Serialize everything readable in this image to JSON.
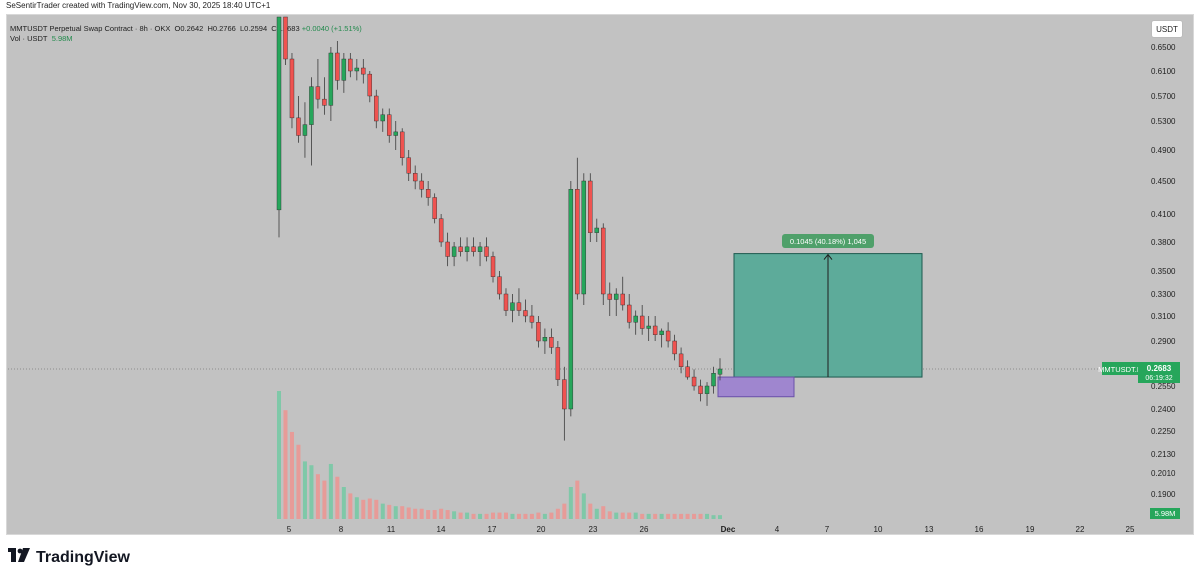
{
  "attribution": "SeSentirTrader created with TradingView.com, Nov 30, 2025 18:40 UTC+1",
  "header": {
    "symbol": "MMTUSDT Perpetual Swap Contract · 8h · OKX",
    "open": "O0.2642",
    "high": "H0.2766",
    "low": "L0.2594",
    "close": "C0.2683",
    "change": "+0.0040 (+1.51%)",
    "vol_label": "Vol · USDT",
    "vol_value": "5.98M"
  },
  "currency_button": "USDT",
  "price_label": {
    "symbol": "MMTUSDT.P",
    "price": "0.2683",
    "countdown": "06:19:32"
  },
  "volume_label": "5.98M",
  "measure_label": "0.1045 (40.18%) 1,045",
  "footer": {
    "logo_text": "TradingView"
  },
  "colors": {
    "up": "#26a65b",
    "down": "#ef5350",
    "target_zone": "#5dab9a",
    "entry_zone": "#9f86cf",
    "background": "#c2c2c2"
  },
  "chart_data": {
    "type": "candlestick",
    "timeframe": "8h",
    "y_ticks": [
      "0.6500",
      "0.6100",
      "0.5700",
      "0.5300",
      "0.4900",
      "0.4500",
      "0.4100",
      "0.3800",
      "0.3500",
      "0.3300",
      "0.3100",
      "0.2900",
      "0.2550",
      "0.2400",
      "0.2250",
      "0.2130",
      "0.2010",
      "0.1900"
    ],
    "x_ticks": [
      "5",
      "8",
      "11",
      "14",
      "17",
      "20",
      "23",
      "26",
      "Dec",
      "4",
      "7",
      "10",
      "13",
      "16",
      "19",
      "22",
      "25"
    ],
    "y_range": [
      0.185,
      0.69
    ],
    "last_price": 0.2683,
    "last_volume": "5.98M",
    "candles": [
      {
        "o": 0.415,
        "h": 0.7,
        "l": 0.385,
        "c": 0.7,
        "v": 1.0
      },
      {
        "o": 0.7,
        "h": 0.7,
        "l": 0.62,
        "c": 0.63,
        "v": 0.85
      },
      {
        "o": 0.63,
        "h": 0.64,
        "l": 0.52,
        "c": 0.535,
        "v": 0.68
      },
      {
        "o": 0.535,
        "h": 0.57,
        "l": 0.5,
        "c": 0.51,
        "v": 0.58
      },
      {
        "o": 0.51,
        "h": 0.56,
        "l": 0.48,
        "c": 0.525,
        "v": 0.45
      },
      {
        "o": 0.525,
        "h": 0.6,
        "l": 0.47,
        "c": 0.585,
        "v": 0.42
      },
      {
        "o": 0.585,
        "h": 0.63,
        "l": 0.55,
        "c": 0.565,
        "v": 0.35
      },
      {
        "o": 0.565,
        "h": 0.6,
        "l": 0.54,
        "c": 0.555,
        "v": 0.3
      },
      {
        "o": 0.555,
        "h": 0.65,
        "l": 0.53,
        "c": 0.64,
        "v": 0.43
      },
      {
        "o": 0.64,
        "h": 0.66,
        "l": 0.58,
        "c": 0.595,
        "v": 0.33
      },
      {
        "o": 0.595,
        "h": 0.64,
        "l": 0.575,
        "c": 0.63,
        "v": 0.25
      },
      {
        "o": 0.63,
        "h": 0.64,
        "l": 0.6,
        "c": 0.61,
        "v": 0.2
      },
      {
        "o": 0.61,
        "h": 0.63,
        "l": 0.595,
        "c": 0.615,
        "v": 0.17
      },
      {
        "o": 0.615,
        "h": 0.63,
        "l": 0.59,
        "c": 0.605,
        "v": 0.15
      },
      {
        "o": 0.605,
        "h": 0.61,
        "l": 0.56,
        "c": 0.57,
        "v": 0.16
      },
      {
        "o": 0.57,
        "h": 0.58,
        "l": 0.52,
        "c": 0.53,
        "v": 0.15
      },
      {
        "o": 0.53,
        "h": 0.55,
        "l": 0.515,
        "c": 0.54,
        "v": 0.12
      },
      {
        "o": 0.54,
        "h": 0.55,
        "l": 0.5,
        "c": 0.51,
        "v": 0.11
      },
      {
        "o": 0.51,
        "h": 0.53,
        "l": 0.49,
        "c": 0.515,
        "v": 0.1
      },
      {
        "o": 0.515,
        "h": 0.52,
        "l": 0.47,
        "c": 0.48,
        "v": 0.1
      },
      {
        "o": 0.48,
        "h": 0.49,
        "l": 0.45,
        "c": 0.46,
        "v": 0.09
      },
      {
        "o": 0.46,
        "h": 0.47,
        "l": 0.44,
        "c": 0.45,
        "v": 0.08
      },
      {
        "o": 0.45,
        "h": 0.46,
        "l": 0.43,
        "c": 0.44,
        "v": 0.08
      },
      {
        "o": 0.44,
        "h": 0.45,
        "l": 0.42,
        "c": 0.43,
        "v": 0.07
      },
      {
        "o": 0.43,
        "h": 0.435,
        "l": 0.4,
        "c": 0.405,
        "v": 0.07
      },
      {
        "o": 0.405,
        "h": 0.41,
        "l": 0.375,
        "c": 0.38,
        "v": 0.08
      },
      {
        "o": 0.38,
        "h": 0.39,
        "l": 0.355,
        "c": 0.365,
        "v": 0.07
      },
      {
        "o": 0.365,
        "h": 0.38,
        "l": 0.355,
        "c": 0.375,
        "v": 0.06
      },
      {
        "o": 0.375,
        "h": 0.385,
        "l": 0.365,
        "c": 0.37,
        "v": 0.05
      },
      {
        "o": 0.37,
        "h": 0.385,
        "l": 0.36,
        "c": 0.375,
        "v": 0.05
      },
      {
        "o": 0.375,
        "h": 0.385,
        "l": 0.365,
        "c": 0.37,
        "v": 0.04
      },
      {
        "o": 0.37,
        "h": 0.38,
        "l": 0.355,
        "c": 0.375,
        "v": 0.04
      },
      {
        "o": 0.375,
        "h": 0.385,
        "l": 0.36,
        "c": 0.365,
        "v": 0.04
      },
      {
        "o": 0.365,
        "h": 0.37,
        "l": 0.34,
        "c": 0.345,
        "v": 0.05
      },
      {
        "o": 0.345,
        "h": 0.35,
        "l": 0.325,
        "c": 0.33,
        "v": 0.05
      },
      {
        "o": 0.33,
        "h": 0.335,
        "l": 0.31,
        "c": 0.315,
        "v": 0.05
      },
      {
        "o": 0.315,
        "h": 0.33,
        "l": 0.305,
        "c": 0.322,
        "v": 0.04
      },
      {
        "o": 0.322,
        "h": 0.335,
        "l": 0.31,
        "c": 0.315,
        "v": 0.04
      },
      {
        "o": 0.315,
        "h": 0.325,
        "l": 0.305,
        "c": 0.31,
        "v": 0.04
      },
      {
        "o": 0.31,
        "h": 0.32,
        "l": 0.3,
        "c": 0.305,
        "v": 0.04
      },
      {
        "o": 0.305,
        "h": 0.31,
        "l": 0.285,
        "c": 0.29,
        "v": 0.05
      },
      {
        "o": 0.29,
        "h": 0.3,
        "l": 0.28,
        "c": 0.293,
        "v": 0.04
      },
      {
        "o": 0.293,
        "h": 0.3,
        "l": 0.28,
        "c": 0.285,
        "v": 0.05
      },
      {
        "o": 0.285,
        "h": 0.29,
        "l": 0.255,
        "c": 0.26,
        "v": 0.08
      },
      {
        "o": 0.26,
        "h": 0.27,
        "l": 0.22,
        "c": 0.24,
        "v": 0.12
      },
      {
        "o": 0.24,
        "h": 0.45,
        "l": 0.235,
        "c": 0.44,
        "v": 0.25
      },
      {
        "o": 0.44,
        "h": 0.48,
        "l": 0.325,
        "c": 0.33,
        "v": 0.3
      },
      {
        "o": 0.33,
        "h": 0.46,
        "l": 0.32,
        "c": 0.45,
        "v": 0.2
      },
      {
        "o": 0.45,
        "h": 0.46,
        "l": 0.38,
        "c": 0.39,
        "v": 0.12
      },
      {
        "o": 0.39,
        "h": 0.405,
        "l": 0.38,
        "c": 0.395,
        "v": 0.08
      },
      {
        "o": 0.395,
        "h": 0.4,
        "l": 0.32,
        "c": 0.33,
        "v": 0.1
      },
      {
        "o": 0.33,
        "h": 0.34,
        "l": 0.31,
        "c": 0.325,
        "v": 0.06
      },
      {
        "o": 0.325,
        "h": 0.335,
        "l": 0.31,
        "c": 0.33,
        "v": 0.05
      },
      {
        "o": 0.33,
        "h": 0.345,
        "l": 0.315,
        "c": 0.32,
        "v": 0.05
      },
      {
        "o": 0.32,
        "h": 0.33,
        "l": 0.3,
        "c": 0.305,
        "v": 0.05
      },
      {
        "o": 0.305,
        "h": 0.315,
        "l": 0.295,
        "c": 0.31,
        "v": 0.05
      },
      {
        "o": 0.31,
        "h": 0.32,
        "l": 0.295,
        "c": 0.3,
        "v": 0.04
      },
      {
        "o": 0.3,
        "h": 0.31,
        "l": 0.29,
        "c": 0.302,
        "v": 0.04
      },
      {
        "o": 0.302,
        "h": 0.31,
        "l": 0.29,
        "c": 0.295,
        "v": 0.04
      },
      {
        "o": 0.295,
        "h": 0.3,
        "l": 0.285,
        "c": 0.298,
        "v": 0.04
      },
      {
        "o": 0.298,
        "h": 0.305,
        "l": 0.285,
        "c": 0.29,
        "v": 0.04
      },
      {
        "o": 0.29,
        "h": 0.295,
        "l": 0.275,
        "c": 0.28,
        "v": 0.04
      },
      {
        "o": 0.28,
        "h": 0.285,
        "l": 0.265,
        "c": 0.27,
        "v": 0.04
      },
      {
        "o": 0.27,
        "h": 0.275,
        "l": 0.26,
        "c": 0.262,
        "v": 0.04
      },
      {
        "o": 0.262,
        "h": 0.268,
        "l": 0.252,
        "c": 0.255,
        "v": 0.04
      },
      {
        "o": 0.255,
        "h": 0.26,
        "l": 0.245,
        "c": 0.25,
        "v": 0.04
      },
      {
        "o": 0.25,
        "h": 0.258,
        "l": 0.242,
        "c": 0.255,
        "v": 0.04
      },
      {
        "o": 0.255,
        "h": 0.27,
        "l": 0.25,
        "c": 0.265,
        "v": 0.03
      },
      {
        "o": 0.2642,
        "h": 0.2766,
        "l": 0.2594,
        "c": 0.2683,
        "v": 0.03
      }
    ],
    "drawings": {
      "target_zone": {
        "top": 0.368,
        "bottom": 0.262,
        "label": "0.1045 (40.18%) 1,045"
      },
      "entry_zone": {
        "top": 0.262,
        "bottom": 0.248
      }
    }
  }
}
